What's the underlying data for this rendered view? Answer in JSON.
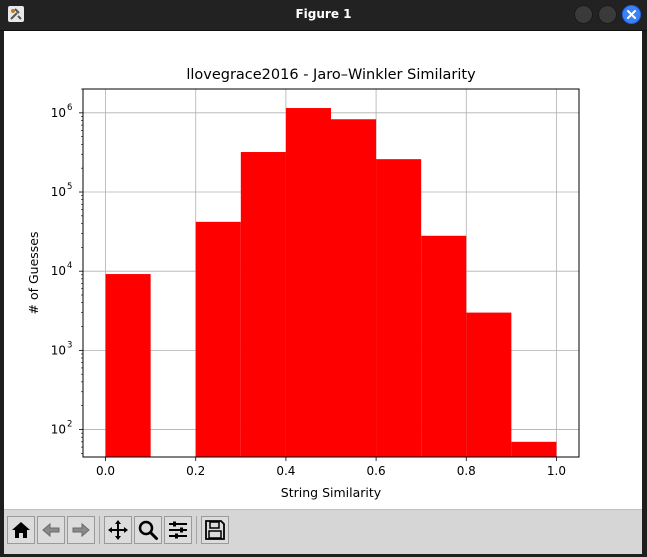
{
  "window": {
    "title": "Figure 1"
  },
  "toolbar": {
    "buttons": [
      {
        "name": "home",
        "icon": "home-icon"
      },
      {
        "name": "back",
        "icon": "back-arrow-icon"
      },
      {
        "name": "forward",
        "icon": "forward-arrow-icon"
      },
      {
        "name": "pan",
        "icon": "pan-move-icon"
      },
      {
        "name": "zoom",
        "icon": "zoom-magnifier-icon"
      },
      {
        "name": "configure-subplots",
        "icon": "sliders-icon"
      },
      {
        "name": "save",
        "icon": "save-floppy-icon"
      }
    ]
  },
  "chart_data": {
    "type": "bar",
    "title": "llovegrace2016 - Jaro–Winkler Similarity",
    "xlabel": "String Similarity",
    "ylabel": "# of Guesses",
    "yscale": "log",
    "bin_edges": [
      0.0,
      0.1,
      0.2,
      0.3,
      0.4,
      0.5,
      0.6,
      0.7,
      0.8,
      0.9,
      1.0
    ],
    "values": [
      9200,
      0,
      42000,
      320000,
      1150000,
      830000,
      260000,
      28000,
      3000,
      70
    ],
    "color": "#ff0000",
    "xlim": [
      -0.05,
      1.05
    ],
    "ylim": [
      45,
      2000000
    ],
    "xticks": [
      {
        "value": 0.0,
        "label": "0.0"
      },
      {
        "value": 0.2,
        "label": "0.2"
      },
      {
        "value": 0.4,
        "label": "0.4"
      },
      {
        "value": 0.6,
        "label": "0.6"
      },
      {
        "value": 0.8,
        "label": "0.8"
      },
      {
        "value": 1.0,
        "label": "1.0"
      }
    ],
    "yticks": [
      {
        "value": 100,
        "base": "10",
        "exp": "2"
      },
      {
        "value": 1000,
        "base": "10",
        "exp": "3"
      },
      {
        "value": 10000,
        "base": "10",
        "exp": "4"
      },
      {
        "value": 100000,
        "base": "10",
        "exp": "5"
      },
      {
        "value": 1000000,
        "base": "10",
        "exp": "6"
      }
    ],
    "grid": true
  }
}
